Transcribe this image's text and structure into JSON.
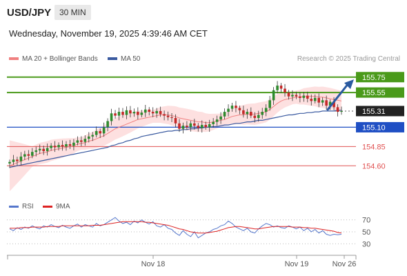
{
  "header": {
    "symbol": "USD/JPY",
    "timeframe": "30 MIN"
  },
  "timestamp": "Wednesday, November 19, 2025 4:39:46 AM CET",
  "legend": {
    "ma20": "MA 20 + Bollinger Bands",
    "ma50": "MA 50",
    "credit": "Research © 2025 Trading Central"
  },
  "colors": {
    "ma20": "#f08080",
    "ma50": "#3a5aa0",
    "bands": "#fcd6d6",
    "bull": "#2e8b2e",
    "bear": "#c62828",
    "green_level": "#4a9a1a",
    "blue_level": "#1f4fc4",
    "red_level": "#e05050",
    "current": "#222222",
    "rsi": "#5577cc",
    "rsi_ma": "#dd2222"
  },
  "chart_data": [
    {
      "type": "candlestick",
      "x_ticks": [
        "Nov 18",
        "Nov 19",
        "Nov 26"
      ],
      "levels": [
        {
          "value": 155.75,
          "label": "155.75",
          "kind": "green"
        },
        {
          "value": 155.55,
          "label": "155.55",
          "kind": "green"
        },
        {
          "value": 155.31,
          "label": "155.31",
          "kind": "current"
        },
        {
          "value": 155.1,
          "label": "155.10",
          "kind": "blue"
        },
        {
          "value": 154.85,
          "label": "154.85",
          "kind": "red"
        },
        {
          "value": 154.6,
          "label": "154.60",
          "kind": "red"
        }
      ],
      "close": [
        154.65,
        154.68,
        154.66,
        154.72,
        154.75,
        154.73,
        154.78,
        154.8,
        154.82,
        154.79,
        154.83,
        154.86,
        154.84,
        154.87,
        154.85,
        154.88,
        154.86,
        154.9,
        154.93,
        154.91,
        154.95,
        154.98,
        155.0,
        155.05,
        155.02,
        155.1,
        155.18,
        155.28,
        155.25,
        155.3,
        155.26,
        155.32,
        155.28,
        155.3,
        155.26,
        155.29,
        155.33,
        155.3,
        155.28,
        155.31,
        155.27,
        155.25,
        155.23,
        155.22,
        155.15,
        155.08,
        155.12,
        155.1,
        155.15,
        155.12,
        155.09,
        155.13,
        155.1,
        155.14,
        155.17,
        155.2,
        155.24,
        155.3,
        155.34,
        155.38,
        155.35,
        155.32,
        155.27,
        155.3,
        155.25,
        155.22,
        155.26,
        155.3,
        155.35,
        155.45,
        155.58,
        155.64,
        155.6,
        155.55,
        155.5,
        155.52,
        155.5,
        155.48,
        155.51,
        155.47,
        155.44,
        155.48,
        155.42,
        155.45,
        155.38,
        155.43,
        155.36,
        155.3,
        155.31
      ],
      "ma20": [
        154.6,
        154.62,
        154.64,
        154.66,
        154.68,
        154.7,
        154.72,
        154.74,
        154.76,
        154.77,
        154.78,
        154.8,
        154.81,
        154.82,
        154.83,
        154.84,
        154.85,
        154.86,
        154.88,
        154.89,
        154.9,
        154.92,
        154.93,
        154.95,
        154.97,
        154.99,
        155.02,
        155.05,
        155.08,
        155.1,
        155.12,
        155.14,
        155.16,
        155.18,
        155.2,
        155.21,
        155.22,
        155.23,
        155.24,
        155.25,
        155.26,
        155.26,
        155.26,
        155.25,
        155.24,
        155.22,
        155.21,
        155.2,
        155.19,
        155.18,
        155.17,
        155.17,
        155.16,
        155.16,
        155.17,
        155.18,
        155.19,
        155.2,
        155.22,
        155.24,
        155.25,
        155.26,
        155.26,
        155.27,
        155.27,
        155.27,
        155.28,
        155.29,
        155.3,
        155.33,
        155.37,
        155.41,
        155.44,
        155.46,
        155.47,
        155.48,
        155.49,
        155.49,
        155.5,
        155.5,
        155.5,
        155.5,
        155.49,
        155.49,
        155.48,
        155.47,
        155.46,
        155.45,
        155.44
      ],
      "ma50": [
        154.58,
        154.59,
        154.6,
        154.61,
        154.62,
        154.63,
        154.64,
        154.65,
        154.66,
        154.67,
        154.68,
        154.69,
        154.7,
        154.71,
        154.72,
        154.73,
        154.74,
        154.75,
        154.76,
        154.77,
        154.78,
        154.79,
        154.8,
        154.81,
        154.82,
        154.83,
        154.84,
        154.86,
        154.87,
        154.89,
        154.9,
        154.92,
        154.93,
        154.95,
        154.96,
        154.98,
        154.99,
        155.0,
        155.01,
        155.02,
        155.03,
        155.04,
        155.05,
        155.05,
        155.06,
        155.06,
        155.07,
        155.07,
        155.08,
        155.08,
        155.09,
        155.09,
        155.1,
        155.1,
        155.11,
        155.11,
        155.12,
        155.13,
        155.13,
        155.14,
        155.15,
        155.15,
        155.16,
        155.17,
        155.17,
        155.18,
        155.19,
        155.19,
        155.2,
        155.21,
        155.22,
        155.23,
        155.24,
        155.25,
        155.26,
        155.26,
        155.27,
        155.28,
        155.28,
        155.29,
        155.29,
        155.3,
        155.3,
        155.31,
        155.31,
        155.31,
        155.31,
        155.32,
        155.32
      ]
    },
    {
      "type": "line",
      "series": [
        {
          "name": "RSI"
        },
        {
          "name": "9MA"
        }
      ],
      "y_ticks": [
        70,
        50,
        30
      ],
      "rsi": [
        55,
        52,
        57,
        54,
        58,
        56,
        60,
        57,
        55,
        60,
        58,
        62,
        59,
        57,
        61,
        58,
        56,
        60,
        63,
        58,
        62,
        60,
        58,
        64,
        60,
        62,
        66,
        70,
        74,
        68,
        64,
        66,
        62,
        68,
        65,
        70,
        66,
        63,
        67,
        60,
        58,
        62,
        56,
        54,
        48,
        44,
        52,
        46,
        42,
        50,
        40,
        44,
        48,
        50,
        54,
        56,
        60,
        62,
        68,
        64,
        58,
        55,
        52,
        56,
        50,
        48,
        55,
        60,
        64,
        62,
        58,
        60,
        57,
        56,
        60,
        58,
        55,
        58,
        52,
        56,
        50,
        54,
        48,
        52,
        46,
        44,
        46,
        45,
        46
      ],
      "rsi_ma": [
        56,
        56,
        56,
        57,
        57,
        57,
        58,
        58,
        58,
        58,
        59,
        59,
        59,
        59,
        60,
        60,
        60,
        60,
        60,
        60,
        60,
        60,
        61,
        61,
        61,
        62,
        63,
        64,
        65,
        66,
        67,
        67,
        67,
        67,
        67,
        67,
        66,
        66,
        65,
        64,
        63,
        62,
        61,
        59,
        57,
        55,
        54,
        52,
        50,
        49,
        48,
        48,
        48,
        49,
        50,
        51,
        53,
        55,
        57,
        58,
        59,
        59,
        58,
        57,
        56,
        55,
        55,
        56,
        57,
        58,
        59,
        59,
        59,
        59,
        59,
        58,
        58,
        58,
        57,
        57,
        56,
        56,
        55,
        54,
        53,
        52,
        51,
        49,
        48
      ]
    }
  ]
}
